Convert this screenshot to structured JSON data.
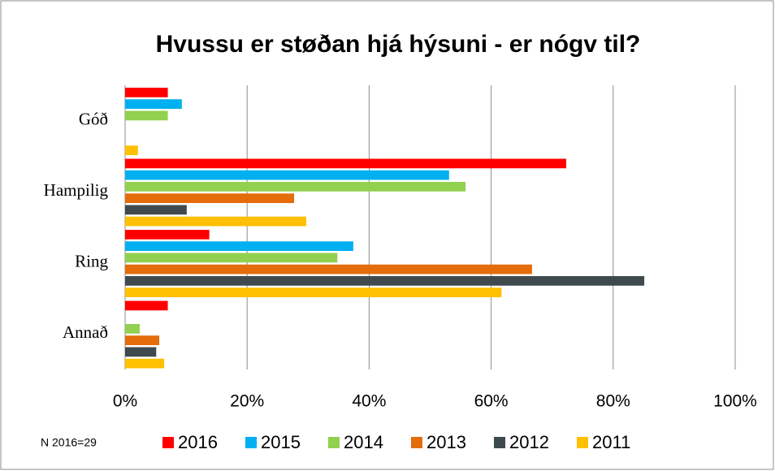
{
  "chart_data": {
    "type": "bar",
    "orientation": "horizontal",
    "title": "Hvussu er støðan hjá hýsuni - er nógv til?",
    "annotation": "N 2016=29",
    "categories": [
      "Góð",
      "Hampilig",
      "Ring",
      "Annað"
    ],
    "series": [
      {
        "name": "2016",
        "color": "#ff0000",
        "values": [
          7,
          72.3,
          13.8,
          7
        ]
      },
      {
        "name": "2015",
        "color": "#00b0f0",
        "values": [
          9.3,
          53.1,
          37.4,
          0
        ]
      },
      {
        "name": "2014",
        "color": "#92d050",
        "values": [
          7,
          55.8,
          34.8,
          2.4
        ]
      },
      {
        "name": "2013",
        "color": "#e46c0a",
        "values": [
          0,
          27.7,
          66.7,
          5.6
        ]
      },
      {
        "name": "2012",
        "color": "#3f4a4f",
        "values": [
          0,
          10.1,
          85.1,
          5.1
        ]
      },
      {
        "name": "2011",
        "color": "#ffc000",
        "values": [
          2.1,
          29.7,
          61.7,
          6.4
        ]
      }
    ],
    "xlim": [
      0,
      100
    ],
    "xticks": [
      {
        "value": 0,
        "label": "0%"
      },
      {
        "value": 20,
        "label": "20%"
      },
      {
        "value": 40,
        "label": "40%"
      },
      {
        "value": 60,
        "label": "60%"
      },
      {
        "value": 80,
        "label": "80%"
      },
      {
        "value": 100,
        "label": "100%"
      }
    ],
    "grid": true,
    "legend": "bottom"
  }
}
